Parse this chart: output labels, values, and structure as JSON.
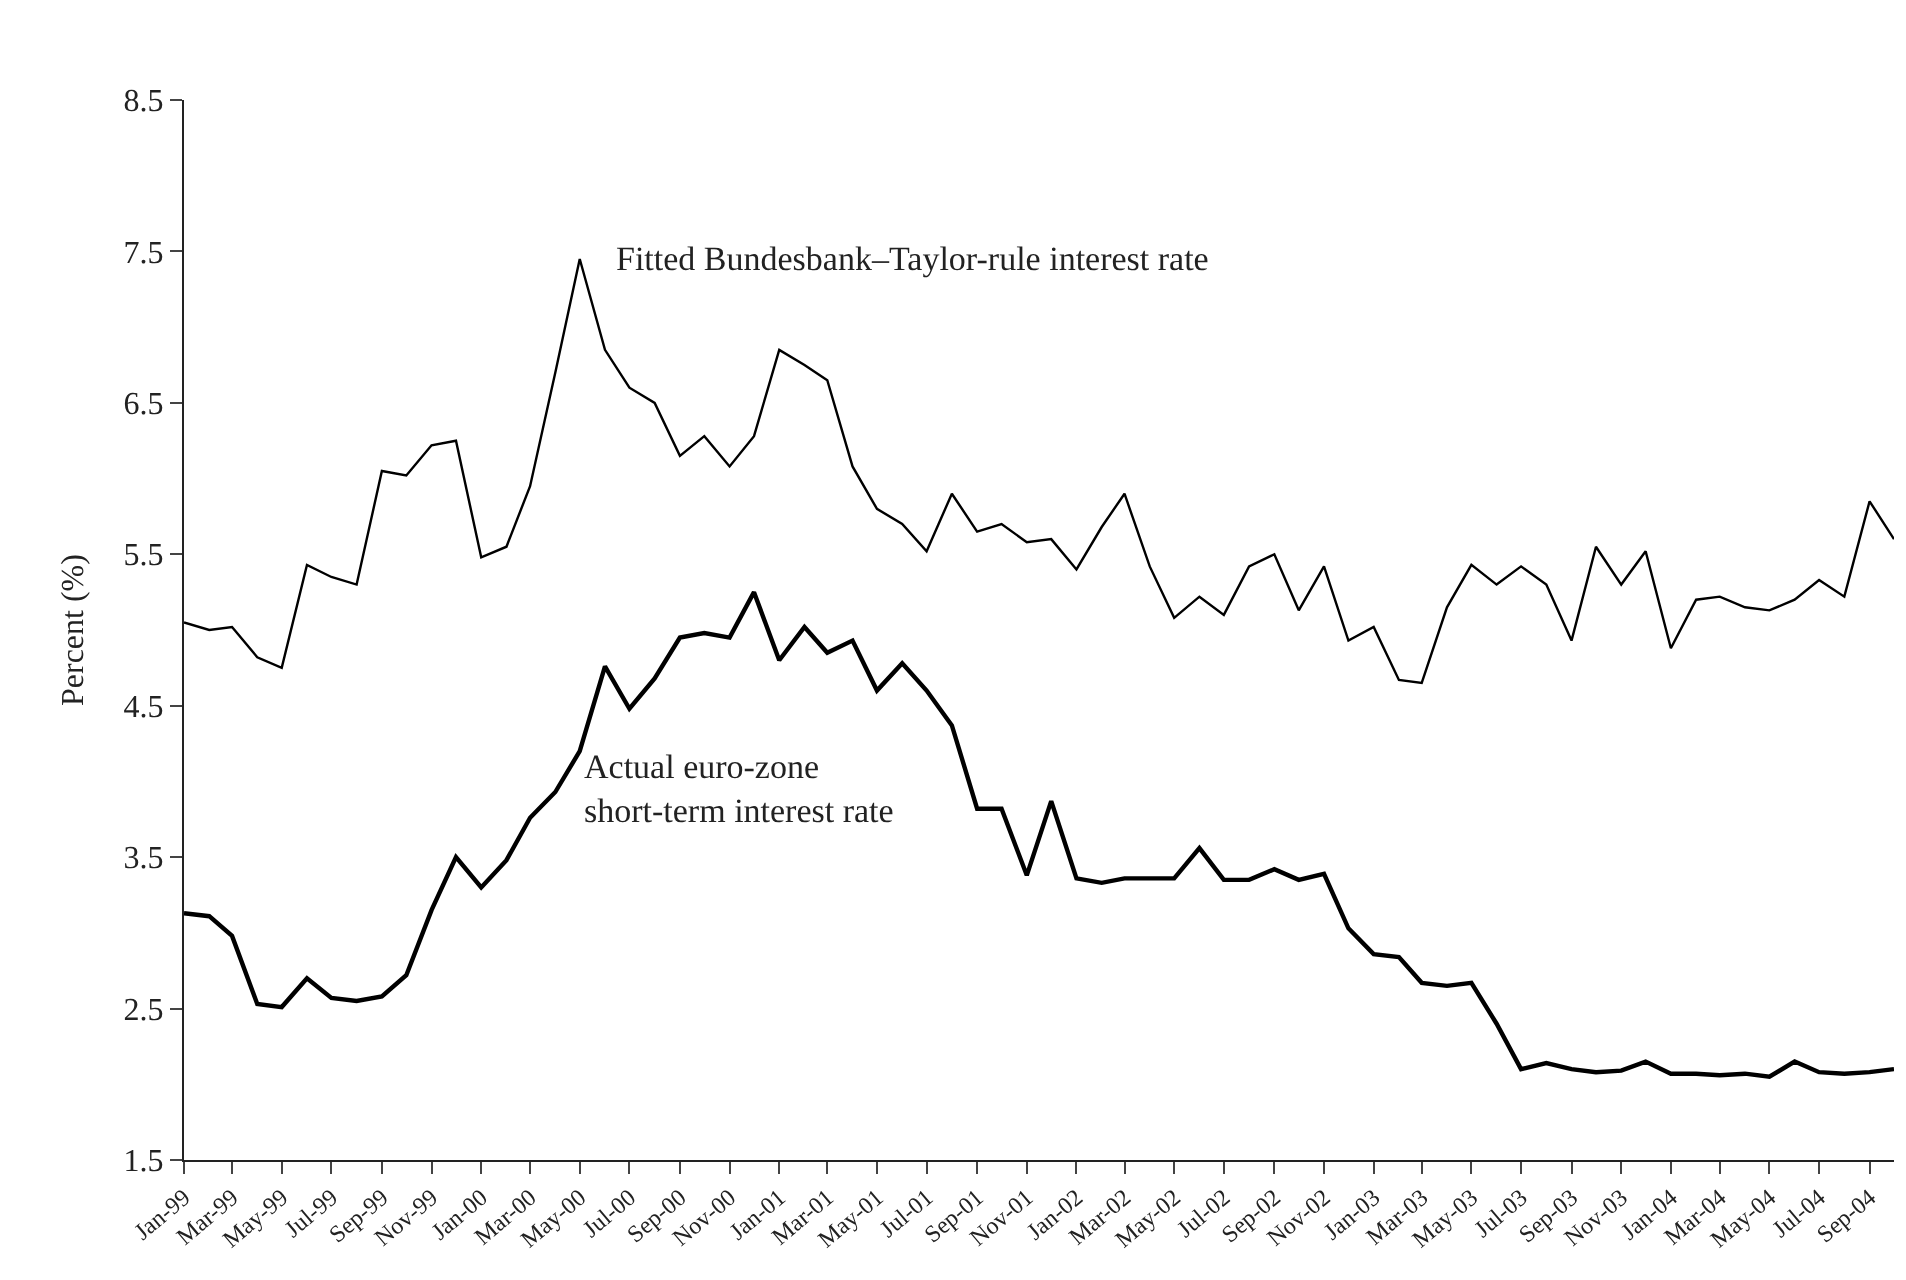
{
  "chart_data": {
    "type": "line",
    "ylabel": "Percent (%)",
    "x": [
      "1999-01",
      "1999-02",
      "1999-03",
      "1999-04",
      "1999-05",
      "1999-06",
      "1999-07",
      "1999-08",
      "1999-09",
      "1999-10",
      "1999-11",
      "1999-12",
      "2000-01",
      "2000-02",
      "2000-03",
      "2000-04",
      "2000-05",
      "2000-06",
      "2000-07",
      "2000-08",
      "2000-09",
      "2000-10",
      "2000-11",
      "2000-12",
      "2001-01",
      "2001-02",
      "2001-03",
      "2001-04",
      "2001-05",
      "2001-06",
      "2001-07",
      "2001-08",
      "2001-09",
      "2001-10",
      "2001-11",
      "2001-12",
      "2002-01",
      "2002-02",
      "2002-03",
      "2002-04",
      "2002-05",
      "2002-06",
      "2002-07",
      "2002-08",
      "2002-09",
      "2002-10",
      "2002-11",
      "2002-12",
      "2003-01",
      "2003-02",
      "2003-03",
      "2003-04",
      "2003-05",
      "2003-06",
      "2003-07",
      "2003-08",
      "2003-09",
      "2003-10",
      "2003-11",
      "2003-12",
      "2004-01",
      "2004-02",
      "2004-03",
      "2004-04",
      "2004-05",
      "2004-06",
      "2004-07",
      "2004-08",
      "2004-09",
      "2004-10"
    ],
    "series": [
      {
        "color": "#000000",
        "values": [
          5.05,
          5.0,
          5.02,
          4.82,
          4.75,
          5.43,
          5.35,
          5.3,
          6.05,
          6.02,
          6.22,
          6.25,
          5.48,
          5.55,
          5.95,
          6.7,
          7.45,
          6.85,
          6.6,
          6.5,
          6.15,
          6.28,
          6.08,
          6.28,
          6.85,
          6.75,
          6.65,
          6.08,
          5.8,
          5.7,
          5.52,
          5.9,
          5.65,
          5.7,
          5.58,
          5.6,
          5.4,
          5.68,
          5.9,
          5.42,
          5.08,
          5.22,
          5.1,
          5.42,
          5.5,
          5.13,
          5.42,
          4.93,
          5.02,
          4.67,
          4.65,
          5.15,
          5.43,
          5.3,
          5.42,
          5.3,
          4.93,
          5.55,
          5.3,
          5.52,
          4.88,
          5.2,
          5.22,
          5.15,
          5.13,
          5.2,
          5.33,
          5.22,
          5.85,
          5.6
        ]
      },
      {
        "color": "#000000",
        "values": [
          3.13,
          3.11,
          2.98,
          2.53,
          2.51,
          2.7,
          2.57,
          2.55,
          2.58,
          2.72,
          3.15,
          3.5,
          3.3,
          3.48,
          3.76,
          3.93,
          4.2,
          4.76,
          4.48,
          4.68,
          4.95,
          4.98,
          4.95,
          5.25,
          4.8,
          5.02,
          4.85,
          4.93,
          4.6,
          4.78,
          4.6,
          4.37,
          3.82,
          3.82,
          3.38,
          3.87,
          3.36,
          3.33,
          3.36,
          3.36,
          3.36,
          3.56,
          3.35,
          3.35,
          3.42,
          3.35,
          3.39,
          3.03,
          2.86,
          2.84,
          2.67,
          2.65,
          2.67,
          2.4,
          2.1,
          2.14,
          2.1,
          2.08,
          2.09,
          2.15,
          2.07,
          2.07,
          2.06,
          2.07,
          2.05,
          2.15,
          2.08,
          2.07,
          2.08,
          2.1
        ]
      }
    ],
    "annotations": [
      "Fitted Bundesbank–Taylor-rule interest rate",
      "Actual euro-zone\nshort-term interest rate"
    ],
    "xlim": [
      "1999-01",
      "2004-10"
    ],
    "xticks": [
      {
        "value": "1999-01",
        "label": "Jan-99"
      },
      {
        "value": "1999-03",
        "label": "Mar-99"
      },
      {
        "value": "1999-05",
        "label": "May-99"
      },
      {
        "value": "1999-07",
        "label": "Jul-99"
      },
      {
        "value": "1999-09",
        "label": "Sep-99"
      },
      {
        "value": "1999-11",
        "label": "Nov-99"
      },
      {
        "value": "2000-01",
        "label": "Jan-00"
      },
      {
        "value": "2000-03",
        "label": "Mar-00"
      },
      {
        "value": "2000-05",
        "label": "May-00"
      },
      {
        "value": "2000-07",
        "label": "Jul-00"
      },
      {
        "value": "2000-09",
        "label": "Sep-00"
      },
      {
        "value": "2000-11",
        "label": "Nov-00"
      },
      {
        "value": "2001-01",
        "label": "Jan-01"
      },
      {
        "value": "2001-03",
        "label": "Mar-01"
      },
      {
        "value": "2001-05",
        "label": "May-01"
      },
      {
        "value": "2001-07",
        "label": "Jul-01"
      },
      {
        "value": "2001-09",
        "label": "Sep-01"
      },
      {
        "value": "2001-11",
        "label": "Nov-01"
      },
      {
        "value": "2002-01",
        "label": "Jan-02"
      },
      {
        "value": "2002-03",
        "label": "Mar-02"
      },
      {
        "value": "2002-05",
        "label": "May-02"
      },
      {
        "value": "2002-07",
        "label": "Jul-02"
      },
      {
        "value": "2002-09",
        "label": "Sep-02"
      },
      {
        "value": "2002-11",
        "label": "Nov-02"
      },
      {
        "value": "2003-01",
        "label": "Jan-03"
      },
      {
        "value": "2003-03",
        "label": "Mar-03"
      },
      {
        "value": "2003-05",
        "label": "May-03"
      },
      {
        "value": "2003-07",
        "label": "Jul-03"
      },
      {
        "value": "2003-09",
        "label": "Sep-03"
      },
      {
        "value": "2003-11",
        "label": "Nov-03"
      },
      {
        "value": "2004-01",
        "label": "Jan-04"
      },
      {
        "value": "2004-03",
        "label": "Mar-04"
      },
      {
        "value": "2004-05",
        "label": "May-04"
      },
      {
        "value": "2004-07",
        "label": "Jul-04"
      },
      {
        "value": "2004-09",
        "label": "Sep-04"
      }
    ],
    "ylim": [
      1.5,
      8.5
    ],
    "yticks": [
      1.5,
      2.5,
      3.5,
      4.5,
      5.5,
      6.5,
      7.5,
      8.5
    ],
    "marker": "none",
    "line_style": "solid"
  }
}
